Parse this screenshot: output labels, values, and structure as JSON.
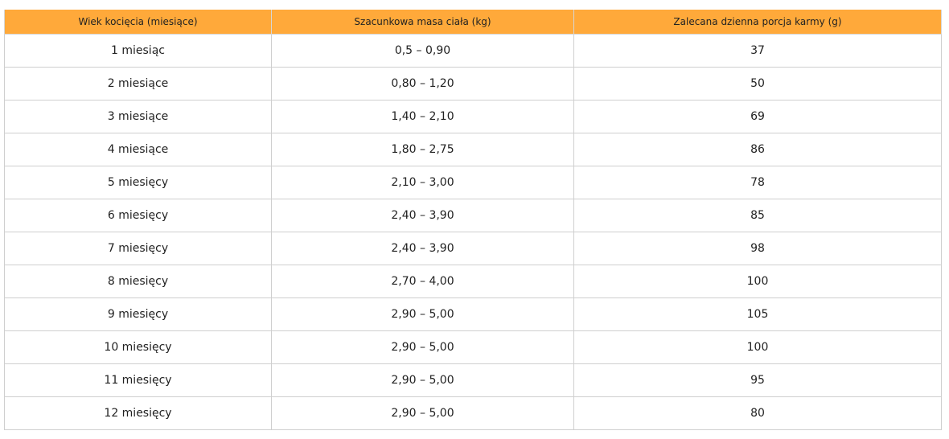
{
  "table": {
    "colors": {
      "header_bg": "#ffa93a"
    },
    "headers": [
      "Wiek kocięcia (miesiące)",
      "Szacunkowa masa ciała (kg)",
      "Zalecana dzienna porcja karmy (g)"
    ],
    "rows": [
      [
        "1 miesiąc",
        "0,5 – 0,90",
        "37"
      ],
      [
        "2 miesiące",
        "0,80 – 1,20",
        "50"
      ],
      [
        "3 miesiące",
        "1,40 – 2,10",
        "69"
      ],
      [
        "4 miesiące",
        "1,80 – 2,75",
        "86"
      ],
      [
        "5 miesięcy",
        "2,10 – 3,00",
        "78"
      ],
      [
        "6 miesięcy",
        "2,40 – 3,90",
        "85"
      ],
      [
        "7 miesięcy",
        "2,40 – 3,90",
        "98"
      ],
      [
        "8 miesięcy",
        "2,70 – 4,00",
        "100"
      ],
      [
        "9 miesięcy",
        "2,90 – 5,00",
        "105"
      ],
      [
        "10 miesięcy",
        "2,90 – 5,00",
        "100"
      ],
      [
        "11 miesięcy",
        "2,90 – 5,00",
        "95"
      ],
      [
        "12 miesięcy",
        "2,90 – 5,00",
        "80"
      ]
    ]
  }
}
